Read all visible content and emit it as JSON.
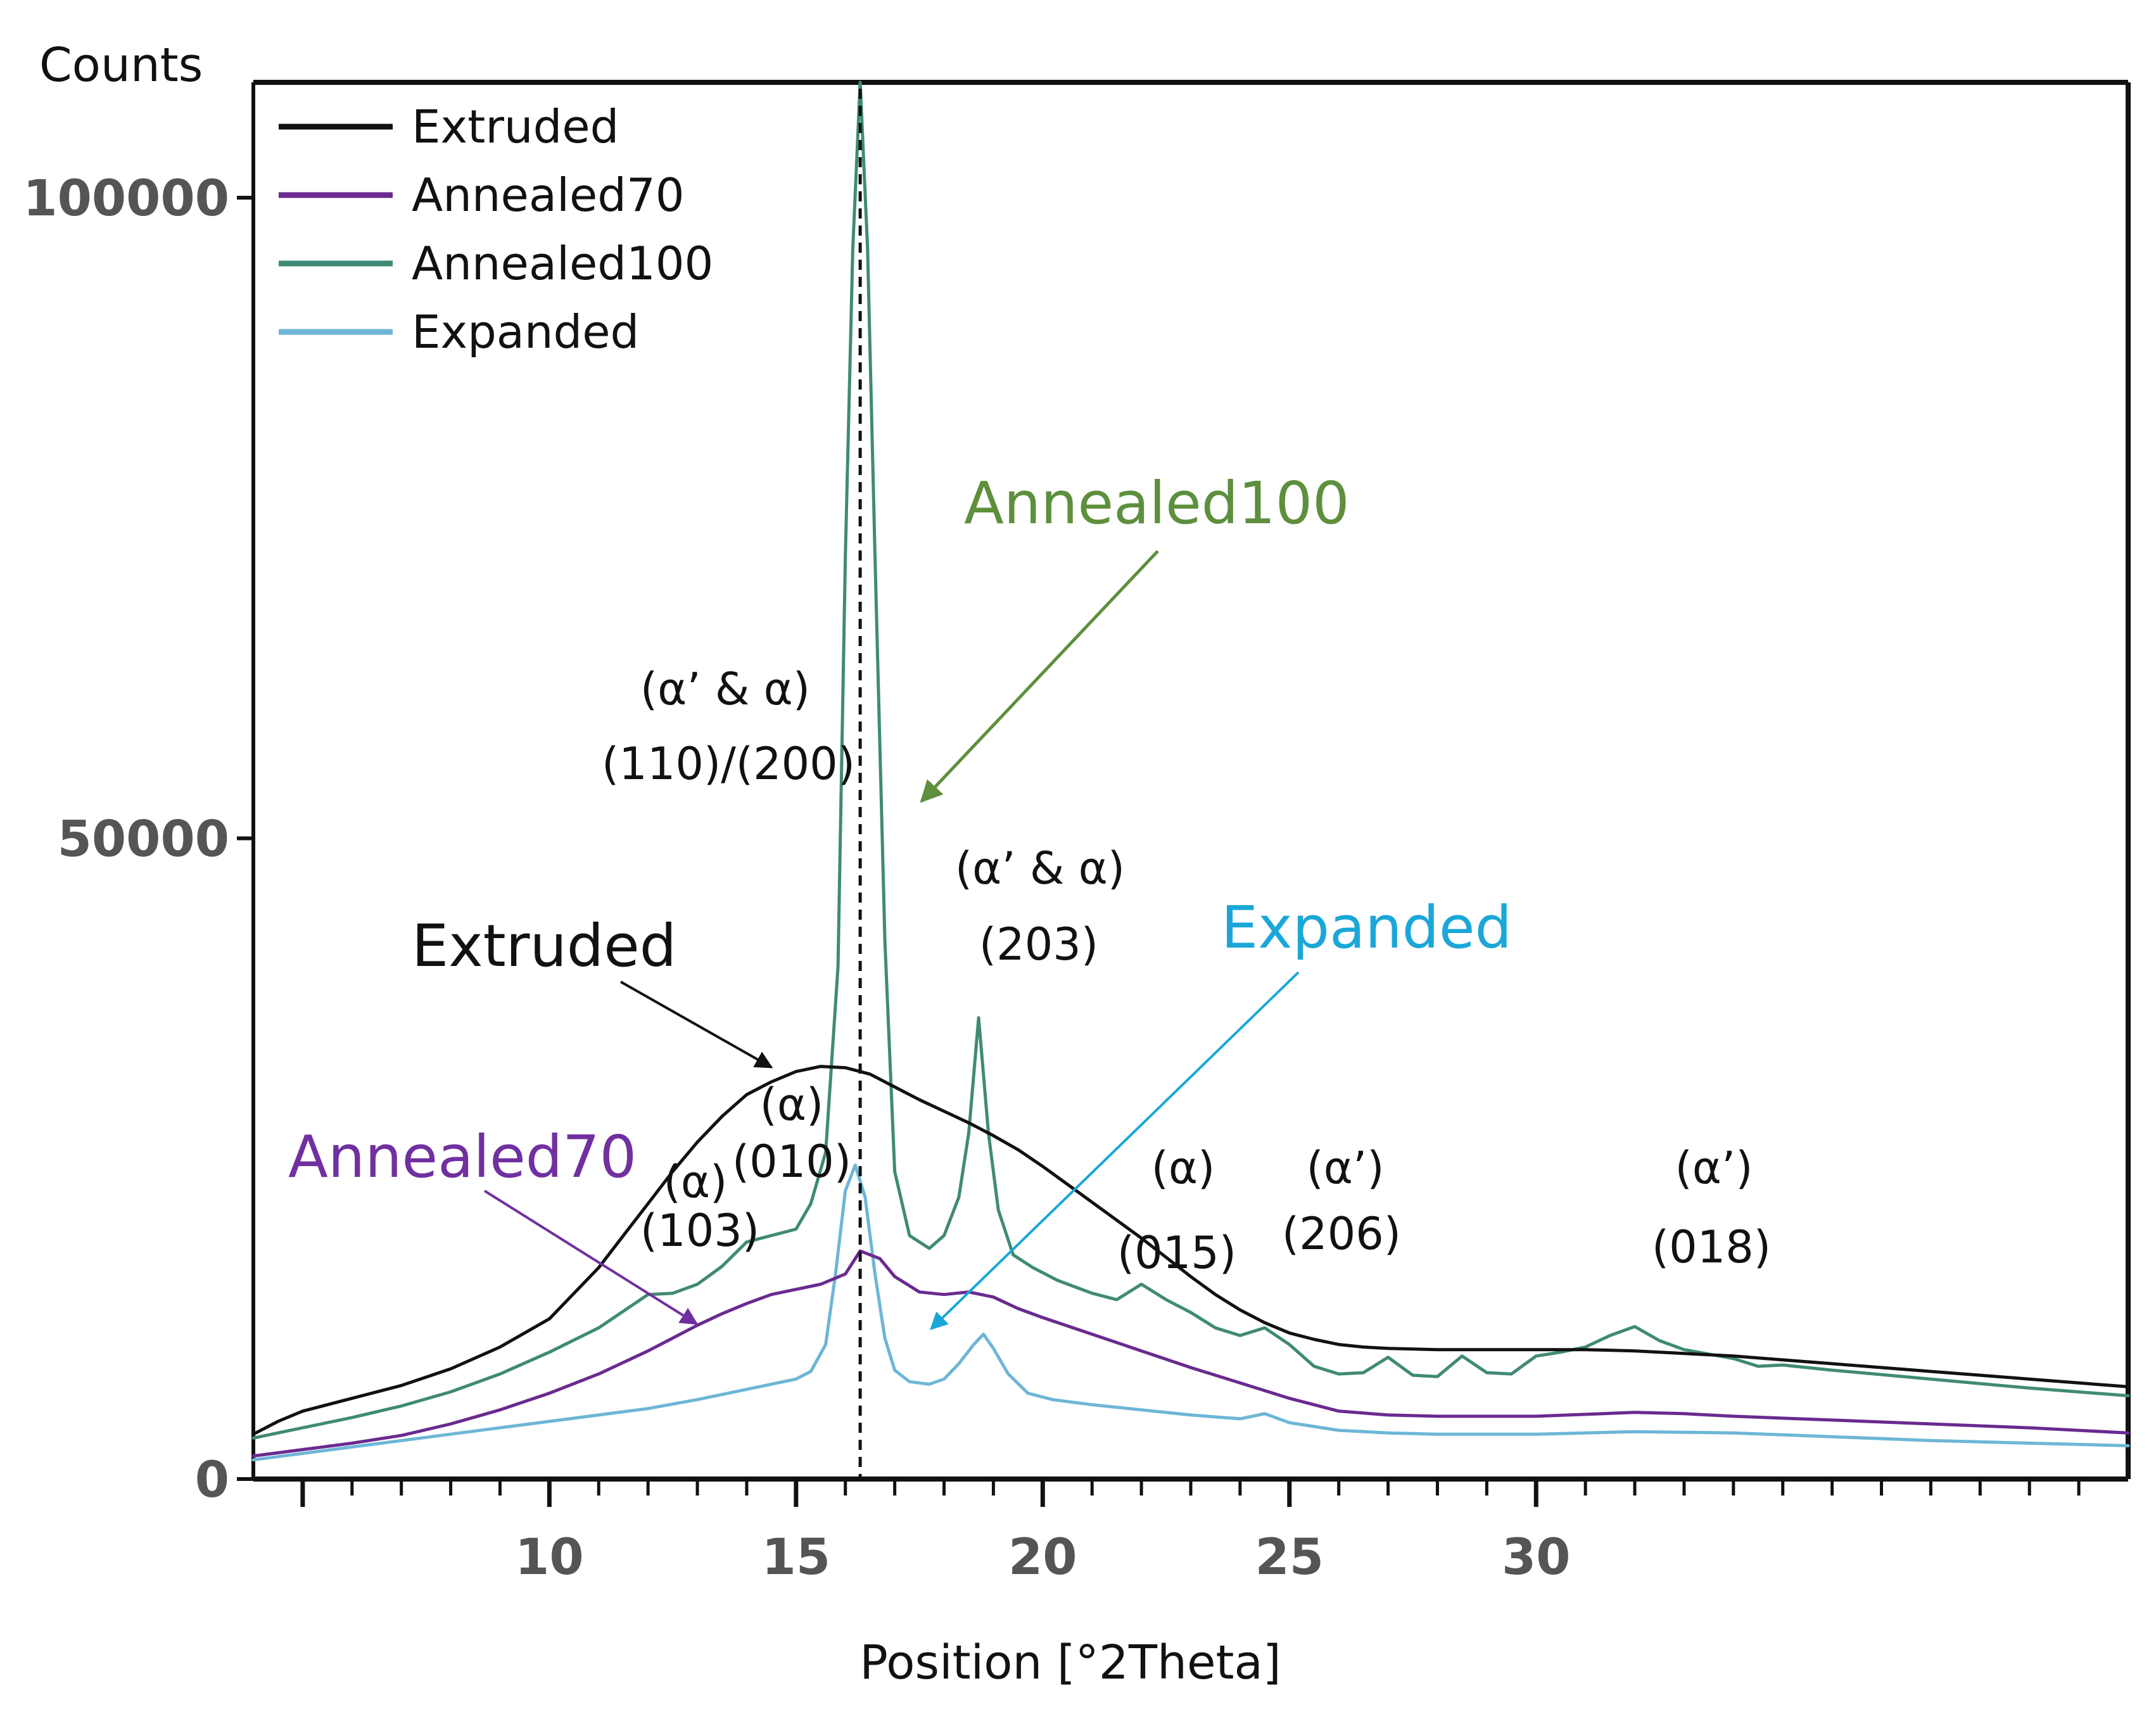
{
  "chart_data": {
    "type": "line",
    "title": "",
    "xlabel": "Position [°2Theta]",
    "ylabel": "Counts",
    "xlim": [
      4,
      42
    ],
    "ylim": [
      0,
      109000
    ],
    "x_ticks": [
      10,
      15,
      20,
      25,
      30
    ],
    "x_tick_labels": [
      "10",
      "15",
      "20",
      "25",
      "30"
    ],
    "y_ticks": [
      0,
      50000,
      100000
    ],
    "y_tick_labels": [
      "0",
      "50000",
      "100000"
    ],
    "grid": false,
    "legend_position": "top-left",
    "reference_line_x": 16.3,
    "series": [
      {
        "name": "Extruded",
        "color": "#111111",
        "x": [
          4,
          4.5,
          5,
          6,
          7,
          8,
          9,
          10,
          10.5,
          11,
          11.5,
          12,
          12.5,
          13,
          13.5,
          14,
          14.5,
          15,
          15.5,
          16,
          16.5,
          17,
          17.5,
          18,
          18.5,
          19,
          19.5,
          20,
          20.5,
          21,
          21.5,
          22,
          22.5,
          23,
          23.5,
          24,
          24.5,
          25,
          25.5,
          26,
          26.5,
          27,
          28,
          29,
          30,
          31,
          32,
          33,
          34,
          35,
          36,
          37,
          38,
          39,
          40,
          41,
          42
        ],
        "y": [
          3500,
          4500,
          5300,
          6300,
          7300,
          8600,
          10300,
          12500,
          14500,
          16500,
          19000,
          21500,
          24000,
          26300,
          28300,
          30000,
          31000,
          31800,
          32200,
          32100,
          31600,
          30600,
          29600,
          28700,
          27800,
          26800,
          25700,
          24400,
          23000,
          21600,
          20200,
          18800,
          17300,
          15800,
          14400,
          13200,
          12200,
          11400,
          10900,
          10500,
          10300,
          10200,
          10100,
          10100,
          10100,
          10100,
          10000,
          9800,
          9600,
          9300,
          9000,
          8700,
          8400,
          8100,
          7800,
          7500,
          7200
        ]
      },
      {
        "name": "Annealed70",
        "color": "#6a2a8f",
        "x": [
          4,
          5,
          6,
          7,
          8,
          9,
          10,
          11,
          12,
          12.5,
          13,
          13.5,
          14,
          14.5,
          15,
          15.5,
          16,
          16.3,
          16.7,
          17,
          17.5,
          18,
          18.5,
          19,
          19.5,
          20,
          21,
          22,
          23,
          24,
          25,
          26,
          27,
          28,
          30,
          32,
          33,
          34,
          36,
          38,
          40,
          42
        ],
        "y": [
          1800,
          2300,
          2800,
          3400,
          4300,
          5400,
          6700,
          8200,
          10000,
          11000,
          12000,
          12900,
          13700,
          14400,
          14800,
          15200,
          16000,
          17800,
          17200,
          15800,
          14600,
          14400,
          14600,
          14200,
          13300,
          12600,
          11300,
          10000,
          8700,
          7500,
          6300,
          5300,
          5000,
          4900,
          4900,
          5200,
          5100,
          4900,
          4600,
          4300,
          4000,
          3600
        ]
      },
      {
        "name": "Annealed100",
        "color": "#3f8a76",
        "x": [
          4,
          5,
          6,
          7,
          8,
          9,
          10,
          11,
          12,
          12.5,
          13,
          13.5,
          14,
          14.5,
          15,
          15.3,
          15.6,
          15.85,
          16.0,
          16.15,
          16.3,
          16.45,
          16.6,
          16.8,
          17.0,
          17.3,
          17.7,
          18.0,
          18.3,
          18.5,
          18.7,
          18.9,
          19.1,
          19.4,
          19.8,
          20.3,
          21,
          21.5,
          22,
          22.5,
          23,
          23.5,
          24,
          24.5,
          25,
          25.5,
          26,
          26.5,
          27,
          27.5,
          28,
          28.5,
          29,
          29.5,
          30,
          30.5,
          31,
          31.5,
          32,
          32.5,
          33,
          34,
          34.5,
          35,
          36,
          38,
          40,
          42
        ],
        "y": [
          3200,
          4000,
          4800,
          5700,
          6800,
          8200,
          9900,
          11800,
          14400,
          14500,
          15200,
          16600,
          18500,
          19000,
          19500,
          21500,
          25500,
          40000,
          72000,
          96000,
          109000,
          96000,
          72000,
          42000,
          24000,
          19000,
          18000,
          19000,
          22000,
          27000,
          36000,
          27000,
          21000,
          17500,
          16500,
          15500,
          14500,
          14000,
          15200,
          14000,
          13000,
          11800,
          11200,
          11800,
          10500,
          8800,
          8200,
          8300,
          9500,
          8100,
          8000,
          9600,
          8300,
          8200,
          9600,
          9900,
          10300,
          11200,
          11900,
          10800,
          10100,
          9400,
          8800,
          8900,
          8500,
          7800,
          7100,
          6500
        ]
      },
      {
        "name": "Expanded",
        "color": "#6db6d6",
        "x": [
          4,
          6,
          8,
          10,
          12,
          13,
          14,
          15,
          15.3,
          15.6,
          15.8,
          16.0,
          16.2,
          16.4,
          16.6,
          16.8,
          17.0,
          17.3,
          17.7,
          18.0,
          18.3,
          18.6,
          18.8,
          19.0,
          19.3,
          19.7,
          20.2,
          21,
          22,
          23,
          24,
          24.5,
          25,
          26,
          27,
          28,
          30,
          32,
          34,
          36,
          38,
          40,
          42
        ],
        "y": [
          1500,
          2500,
          3500,
          4500,
          5500,
          6200,
          7000,
          7800,
          8400,
          10500,
          16000,
          22500,
          24500,
          22000,
          16000,
          11000,
          8500,
          7600,
          7400,
          7800,
          9000,
          10500,
          11300,
          10200,
          8200,
          6700,
          6200,
          5800,
          5400,
          5000,
          4700,
          5100,
          4400,
          3800,
          3600,
          3500,
          3500,
          3700,
          3600,
          3300,
          3000,
          2800,
          2600
        ]
      }
    ],
    "annotations": [
      {
        "lines": [
          "(α’ & α)",
          "(110)/(200)"
        ]
      },
      {
        "lines": [
          "(α’ & α)",
          "(203)"
        ]
      },
      {
        "lines": [
          "(α)",
          "(010)"
        ]
      },
      {
        "lines": [
          "(α)",
          "(103)"
        ]
      },
      {
        "lines": [
          "(α)",
          "(015)"
        ]
      },
      {
        "lines": [
          "(α’)",
          "(206)"
        ]
      },
      {
        "lines": [
          "(α’)",
          "(018)"
        ]
      }
    ],
    "series_callouts": [
      {
        "label": "Annealed100",
        "color": "#5d8f3c"
      },
      {
        "label": "Expanded",
        "color": "#1aa7d8"
      },
      {
        "label": "Extruded",
        "color": "#111111"
      },
      {
        "label": "Annealed70",
        "color": "#7030a0"
      }
    ]
  }
}
